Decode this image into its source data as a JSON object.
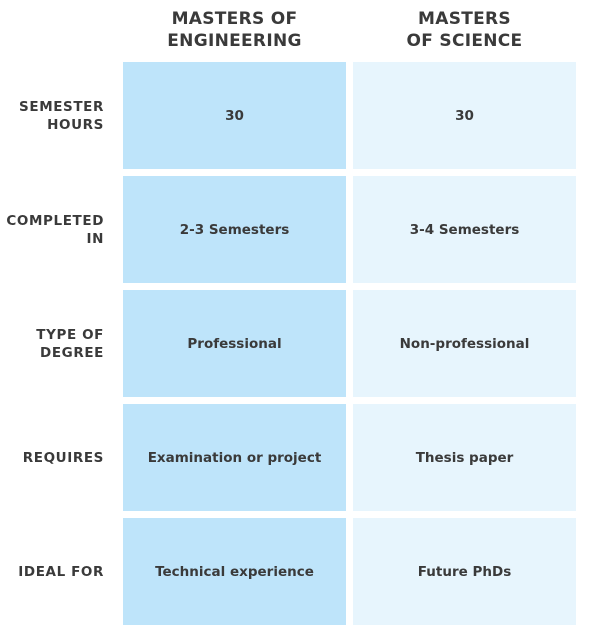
{
  "headers": {
    "engineering": "MASTERS OF\nENGINEERING",
    "science": "MASTERS\nOF SCIENCE"
  },
  "rows": [
    {
      "label": "SEMESTER\nHOURS",
      "engineering": "30",
      "science": "30"
    },
    {
      "label": "COMPLETED\nIN",
      "engineering": "2-3 Semesters",
      "science": "3-4 Semesters"
    },
    {
      "label": "TYPE OF\nDEGREE",
      "engineering": "Professional",
      "science": "Non-professional"
    },
    {
      "label": "REQUIRES",
      "engineering": "Examination or project",
      "science": "Thesis paper"
    },
    {
      "label": "IDEAL FOR",
      "engineering": "Technical experience",
      "science": "Future PhDs"
    }
  ],
  "colors": {
    "engineering_cell": "#bee4fa",
    "science_cell": "#e7f5fd",
    "text": "#3a3a3a"
  }
}
